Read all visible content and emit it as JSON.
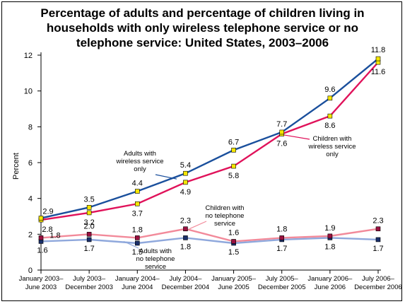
{
  "chart_data": {
    "type": "line",
    "title_lines": [
      "Percentage of adults and percentage of children living in",
      "households with only wireless telephone service or no",
      "telephone service: United States, 2003–2006"
    ],
    "ylabel": "Percent",
    "ylim": [
      0,
      12
    ],
    "yticks": [
      "0",
      "2",
      "4",
      "6",
      "8",
      "10",
      "12"
    ],
    "categories": [
      [
        "January 2003–",
        "June 2003"
      ],
      [
        "July 2003–",
        "December 2003"
      ],
      [
        "January 2004–",
        "June 2004"
      ],
      [
        "July 2004–",
        "December 2004"
      ],
      [
        "January 2005–",
        "June 2005"
      ],
      [
        "July 2005–",
        "December 2005"
      ],
      [
        "January 2006–",
        "June 2006"
      ],
      [
        "July 2006–",
        "December 2006"
      ]
    ],
    "series": [
      {
        "name": "Adults with wireless service only",
        "name_lines": [
          "Adults with",
          "wireless service",
          "only"
        ],
        "color": "#1a4f9c",
        "marker": "#f5e600",
        "values": [
          2.9,
          3.5,
          4.4,
          5.4,
          6.7,
          7.7,
          9.6,
          11.8
        ],
        "labels": [
          "2.9",
          "3.5",
          "4.4",
          "5.4",
          "6.7",
          "7.7",
          "9.6",
          "11.8"
        ]
      },
      {
        "name": "Children with wireless service only",
        "name_lines": [
          "Children with",
          "wireless service",
          "only"
        ],
        "color": "#e0125a",
        "marker": "#f5e600",
        "values": [
          2.8,
          3.2,
          3.7,
          4.9,
          5.8,
          7.6,
          8.6,
          11.6
        ],
        "labels": [
          "2.8",
          "3.2",
          "3.7",
          "4.9",
          "5.8",
          "7.6",
          "8.6",
          "11.6"
        ]
      },
      {
        "name": "Children with no telephone service",
        "name_lines": [
          "Children with",
          "no telephone",
          "service"
        ],
        "color": "#f28a9a",
        "marker": "#9a1040",
        "values": [
          1.8,
          2.0,
          1.8,
          2.3,
          1.6,
          1.8,
          1.9,
          2.3
        ],
        "labels": [
          "1.8",
          "2.0",
          "1.8",
          "2.3",
          "1.6",
          "1.8",
          "1.9",
          "2.3"
        ]
      },
      {
        "name": "Adults with no telephone service",
        "name_lines": [
          "Adults with",
          "no telephone",
          "service"
        ],
        "color": "#8fa8dc",
        "marker": "#1a2f6a",
        "values": [
          1.6,
          1.7,
          1.5,
          1.8,
          1.5,
          1.7,
          1.8,
          1.7
        ],
        "labels": [
          "1.6",
          "1.7",
          "1.5",
          "1.8",
          "1.5",
          "1.7",
          "1.8",
          "1.7"
        ]
      }
    ],
    "grid": false,
    "legend": "inline annotations"
  }
}
